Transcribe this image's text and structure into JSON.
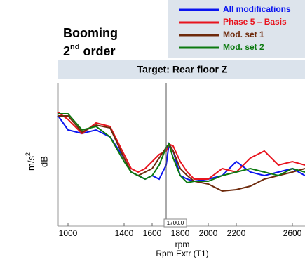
{
  "chart_data": {
    "type": "line",
    "title_lines": [
      "Booming",
      [
        "2",
        "nd",
        " order"
      ]
    ],
    "banner": "Target: Rear floor Z",
    "ylabel": [
      "m/s",
      "2"
    ],
    "ylabel_unit": "dB",
    "xlabel": "rpm",
    "xlabel2": "Rpm Extr (T1)",
    "x": [
      930,
      1000,
      1100,
      1200,
      1300,
      1400,
      1450,
      1500,
      1550,
      1600,
      1650,
      1700,
      1720,
      1750,
      1800,
      1850,
      1900,
      2000,
      2100,
      2200,
      2300,
      2400,
      2500,
      2600,
      2690
    ],
    "series": [
      {
        "name": "All modifications",
        "color": "#0a14f0",
        "values": [
          157,
          137,
          132,
          137,
          127,
          97,
          77,
          72,
          67,
          72,
          67,
          87,
          117,
          107,
          72,
          67,
          64,
          67,
          72,
          92,
          77,
          72,
          77,
          82,
          72
        ]
      },
      {
        "name": "Phase 5 – Basis",
        "color": "#e8141e",
        "values": [
          162,
          152,
          132,
          147,
          142,
          102,
          82,
          77,
          82,
          92,
          102,
          107,
          117,
          114,
          92,
          77,
          67,
          67,
          82,
          77,
          97,
          107,
          87,
          92,
          87
        ]
      },
      {
        "name": "Mod. set 1",
        "color": "#6e2a0c",
        "values": [
          157,
          157,
          134,
          144,
          140,
          97,
          77,
          72,
          77,
          82,
          97,
          112,
          117,
          107,
          82,
          72,
          64,
          60,
          50,
          52,
          57,
          67,
          72,
          77,
          82
        ]
      },
      {
        "name": "Mod. set 2",
        "color": "#0c7a10",
        "values": [
          160,
          160,
          137,
          142,
          127,
          92,
          77,
          72,
          67,
          72,
          87,
          112,
          117,
          97,
          72,
          62,
          64,
          64,
          72,
          77,
          82,
          77,
          72,
          82,
          77
        ]
      }
    ],
    "xlim": [
      930,
      2690
    ],
    "ylim": [
      0,
      204
    ],
    "xticks": [
      1000,
      1400,
      1600,
      1800,
      2000,
      2200,
      2600
    ],
    "cursor": {
      "value": 1700,
      "label": "1700.0"
    }
  }
}
